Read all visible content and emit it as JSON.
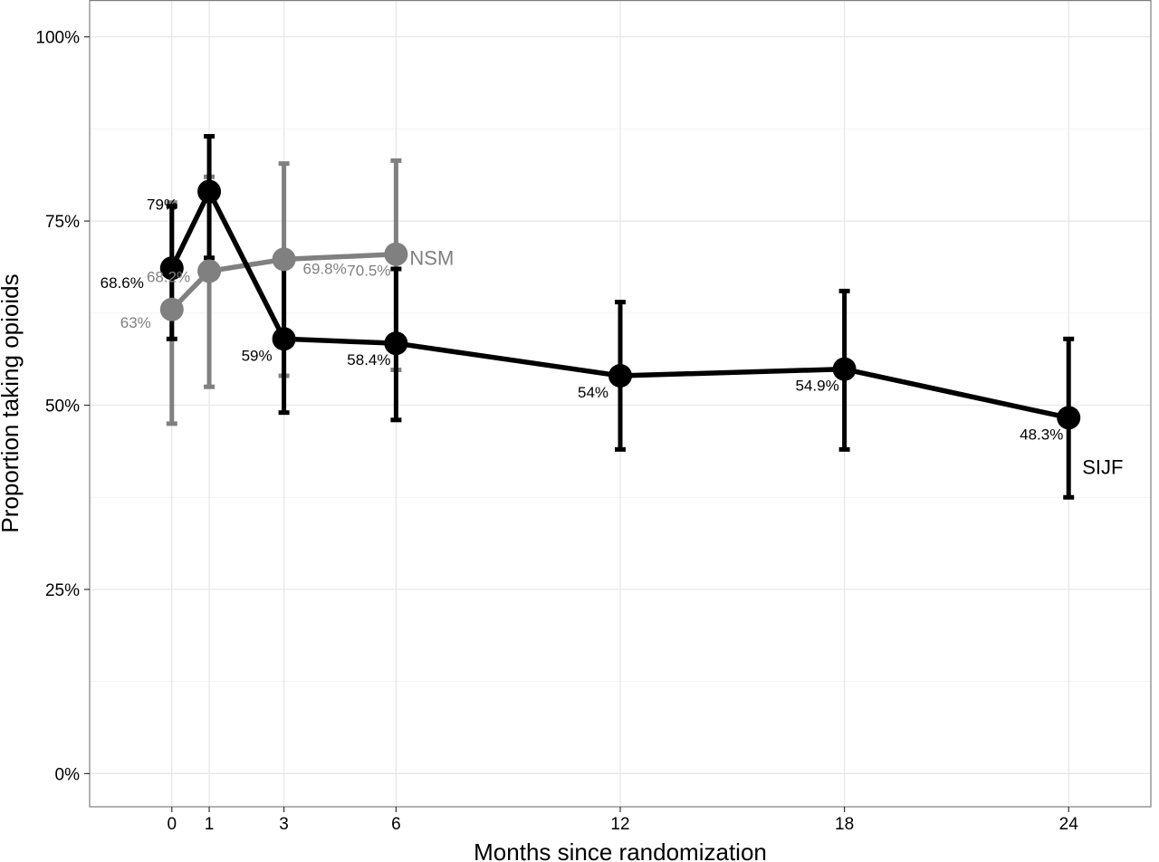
{
  "chart_data": {
    "type": "line",
    "xlabel": "Months since randomization",
    "ylabel": "Proportion taking opioids",
    "xlim": [
      -2.2,
      26.2
    ],
    "ylim": [
      -0.045,
      1.05
    ],
    "x_ticks": [
      0,
      1,
      3,
      6,
      12,
      18,
      24
    ],
    "y_ticks": [
      0,
      0.25,
      0.5,
      0.75,
      1.0
    ],
    "y_tick_labels": [
      "0%",
      "25%",
      "50%",
      "75%",
      "100%"
    ],
    "grid": true,
    "legend": "none (series labeled at line ends)",
    "series": [
      {
        "name": "SIJF",
        "color": "#000000",
        "x": [
          0,
          1,
          3,
          6,
          12,
          18,
          24
        ],
        "y": [
          0.686,
          0.79,
          0.59,
          0.584,
          0.54,
          0.549,
          0.483
        ],
        "lower": [
          0.59,
          0.7,
          0.49,
          0.48,
          0.44,
          0.44,
          0.375
        ],
        "upper": [
          0.77,
          0.865,
          0.69,
          0.685,
          0.64,
          0.655,
          0.59
        ],
        "labels": [
          "68.6%",
          "79%",
          "59%",
          "58.4%",
          "54%",
          "54.9%",
          "48.3%"
        ]
      },
      {
        "name": "NSM",
        "color": "#808080",
        "x": [
          0,
          1,
          3,
          6
        ],
        "y": [
          0.63,
          0.682,
          0.698,
          0.705
        ],
        "lower": [
          0.475,
          0.525,
          0.54,
          0.548
        ],
        "upper": [
          0.775,
          0.81,
          0.828,
          0.832
        ],
        "labels": [
          "63%",
          "68.2%",
          "69.8%",
          "70.5%"
        ]
      }
    ]
  }
}
